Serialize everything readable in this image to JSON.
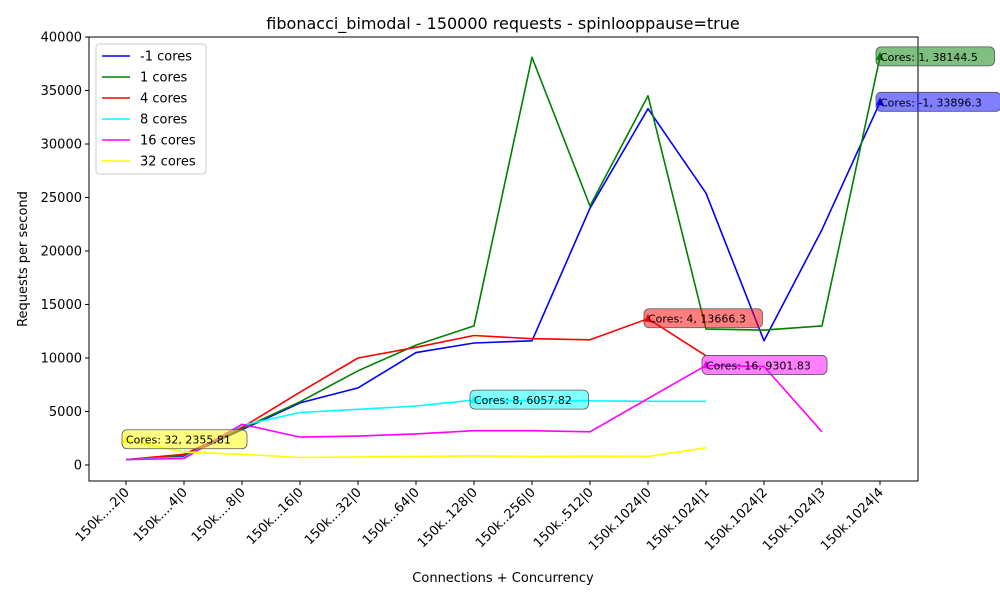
{
  "chart_data": {
    "type": "line",
    "title": "fibonacci_bimodal - 150000 requests - spinlooppause=true",
    "xlabel": "Connections + Concurrency",
    "ylabel": "Requests per second",
    "ylim": [
      -1500,
      40000
    ],
    "yticks": [
      0,
      5000,
      10000,
      15000,
      20000,
      25000,
      30000,
      35000,
      40000
    ],
    "categories": [
      "150k....2|0",
      "150k....4|0",
      "150k....8|0",
      "150k...16|0",
      "150k...32|0",
      "150k...64|0",
      "150k..128|0",
      "150k..256|0",
      "150k..512|0",
      "150k.1024|0",
      "150k.1024|1",
      "150k.1024|2",
      "150k.1024|3",
      "150k.1024|4"
    ],
    "legend_position": "top-left",
    "grid": false,
    "series": [
      {
        "name": "-1 cores",
        "color": "#0000ff",
        "values": [
          500,
          800,
          3300,
          5800,
          7200,
          10500,
          11400,
          11600,
          24000,
          33300,
          25400,
          11600,
          22000,
          33896.3
        ]
      },
      {
        "name": "1 cores",
        "color": "#008000",
        "values": [
          500,
          900,
          3400,
          5900,
          8800,
          11200,
          13000,
          38100,
          24200,
          34500,
          12700,
          12600,
          13000,
          38144.5
        ]
      },
      {
        "name": "4 cores",
        "color": "#ff0000",
        "values": [
          500,
          1000,
          3500,
          6800,
          10000,
          11000,
          12100,
          11800,
          11700,
          13666.3,
          10200,
          null,
          null,
          null
        ]
      },
      {
        "name": "8 cores",
        "color": "#00ffff",
        "values": [
          500,
          700,
          3700,
          4900,
          5200,
          5500,
          6057.82,
          6000,
          6000,
          5950,
          5950,
          null,
          null,
          null
        ]
      },
      {
        "name": "16 cores",
        "color": "#ff00ff",
        "values": [
          500,
          600,
          3800,
          2600,
          2700,
          2900,
          3200,
          3200,
          3100,
          6200,
          9301.83,
          9200,
          3100,
          null
        ]
      },
      {
        "name": "32 cores",
        "color": "#ffff00",
        "values": [
          2355.81,
          1200,
          1000,
          700,
          750,
          800,
          850,
          800,
          820,
          800,
          1600,
          null,
          null,
          null
        ]
      }
    ],
    "annotations": [
      {
        "text": "Cores: 1, 38144.5",
        "x_index": 13,
        "y": 38144.5,
        "color": "#008000"
      },
      {
        "text": "Cores: -1, 33896.3",
        "x_index": 13,
        "y": 33896.3,
        "color": "#0000ff"
      },
      {
        "text": "Cores: 4, 13666.3",
        "x_index": 9,
        "y": 13666.3,
        "color": "#ff0000"
      },
      {
        "text": "Cores: 16, 9301.83",
        "x_index": 10,
        "y": 9301.83,
        "color": "#ff00ff"
      },
      {
        "text": "Cores: 8, 6057.82",
        "x_index": 6,
        "y": 6057.82,
        "color": "#00ffff"
      },
      {
        "text": "Cores: 32, 2355.81",
        "x_index": 0,
        "y": 2355.81,
        "color": "#ffff00"
      }
    ]
  }
}
